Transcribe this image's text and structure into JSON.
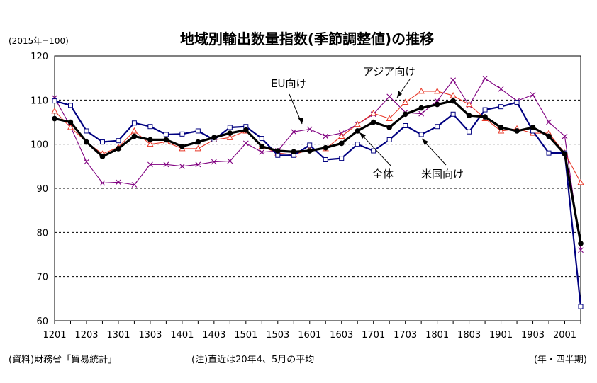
{
  "chart_data": {
    "type": "line",
    "title": "地域別輸出数量指数(季節調整値)の推移",
    "unit_label": "(2015年=100)",
    "xlabel_note": "(年・四半期)",
    "source_note": "(資料)財務省「貿易統計」",
    "footnote": "(注)直近は20年4、5月の平均",
    "ylim": [
      60,
      120
    ],
    "yticks": [
      60,
      70,
      80,
      90,
      100,
      110,
      120
    ],
    "gridlines": [
      70,
      80,
      90,
      100,
      110
    ],
    "x": [
      "1201",
      "1202",
      "1203",
      "1204",
      "1301",
      "1302",
      "1303",
      "1304",
      "1401",
      "1402",
      "1403",
      "1404",
      "1501",
      "1502",
      "1503",
      "1504",
      "1601",
      "1602",
      "1603",
      "1604",
      "1701",
      "1702",
      "1703",
      "1704",
      "1801",
      "1802",
      "1803",
      "1804",
      "1901",
      "1902",
      "1903",
      "1904",
      "2001",
      "2002"
    ],
    "xtick_labels": [
      "1201",
      "1203",
      "1301",
      "1303",
      "1401",
      "1403",
      "1501",
      "1503",
      "1601",
      "1603",
      "1701",
      "1703",
      "1801",
      "1803",
      "1901",
      "1903",
      "2001"
    ],
    "series": [
      {
        "name": "全体",
        "color": "#000000",
        "marker": "filled-circle",
        "values": [
          105.8,
          105.0,
          100.5,
          97.2,
          99.0,
          101.8,
          101.0,
          101.0,
          99.5,
          100.5,
          101.5,
          102.5,
          103.2,
          99.5,
          98.5,
          98.3,
          98.5,
          99.2,
          100.2,
          103.0,
          105.0,
          103.8,
          106.8,
          108.2,
          109.0,
          109.8,
          106.5,
          106.2,
          103.8,
          103.0,
          103.8,
          101.8,
          97.8,
          77.5
        ]
      },
      {
        "name": "米国向け",
        "color": "#000080",
        "marker": "open-square",
        "values": [
          109.8,
          108.8,
          103.0,
          100.5,
          100.8,
          104.8,
          104.0,
          102.2,
          102.3,
          103.0,
          101.0,
          103.8,
          104.0,
          101.3,
          97.5,
          97.5,
          99.8,
          96.5,
          96.8,
          100.0,
          98.5,
          101.0,
          104.2,
          102.2,
          104.0,
          106.8,
          102.8,
          107.8,
          108.5,
          109.5,
          103.0,
          98.0,
          98.0,
          63.2
        ]
      },
      {
        "name": "EU向け",
        "color": "#800080",
        "marker": "x",
        "values": [
          110.5,
          104.0,
          96.0,
          91.2,
          91.4,
          90.8,
          95.4,
          95.4,
          95.0,
          95.4,
          96.0,
          96.2,
          100.2,
          98.2,
          98.5,
          102.8,
          103.4,
          101.8,
          102.5,
          104.5,
          106.8,
          110.8,
          107.2,
          106.9,
          109.8,
          114.5,
          108.8,
          114.9,
          112.5,
          109.8,
          111.2,
          105.0,
          101.8,
          76.0
        ]
      },
      {
        "name": "アジア向け",
        "color": "#e83828",
        "marker": "open-triangle",
        "values": [
          107.5,
          103.8,
          100.5,
          97.8,
          99.3,
          103.0,
          100.0,
          100.5,
          99.0,
          99.0,
          101.0,
          101.5,
          103.0,
          99.5,
          98.0,
          97.6,
          98.8,
          99.0,
          101.8,
          104.5,
          107.0,
          105.8,
          109.5,
          112.0,
          112.0,
          111.0,
          109.0,
          105.8,
          103.0,
          103.5,
          102.5,
          102.5,
          98.0,
          91.3
        ]
      }
    ],
    "annotations": [
      {
        "series": "EU向け",
        "text": "EU向け"
      },
      {
        "series": "アジア向け",
        "text": "アジア向け"
      },
      {
        "series": "全体",
        "text": "全体"
      },
      {
        "series": "米国向け",
        "text": "米国向け"
      }
    ]
  }
}
